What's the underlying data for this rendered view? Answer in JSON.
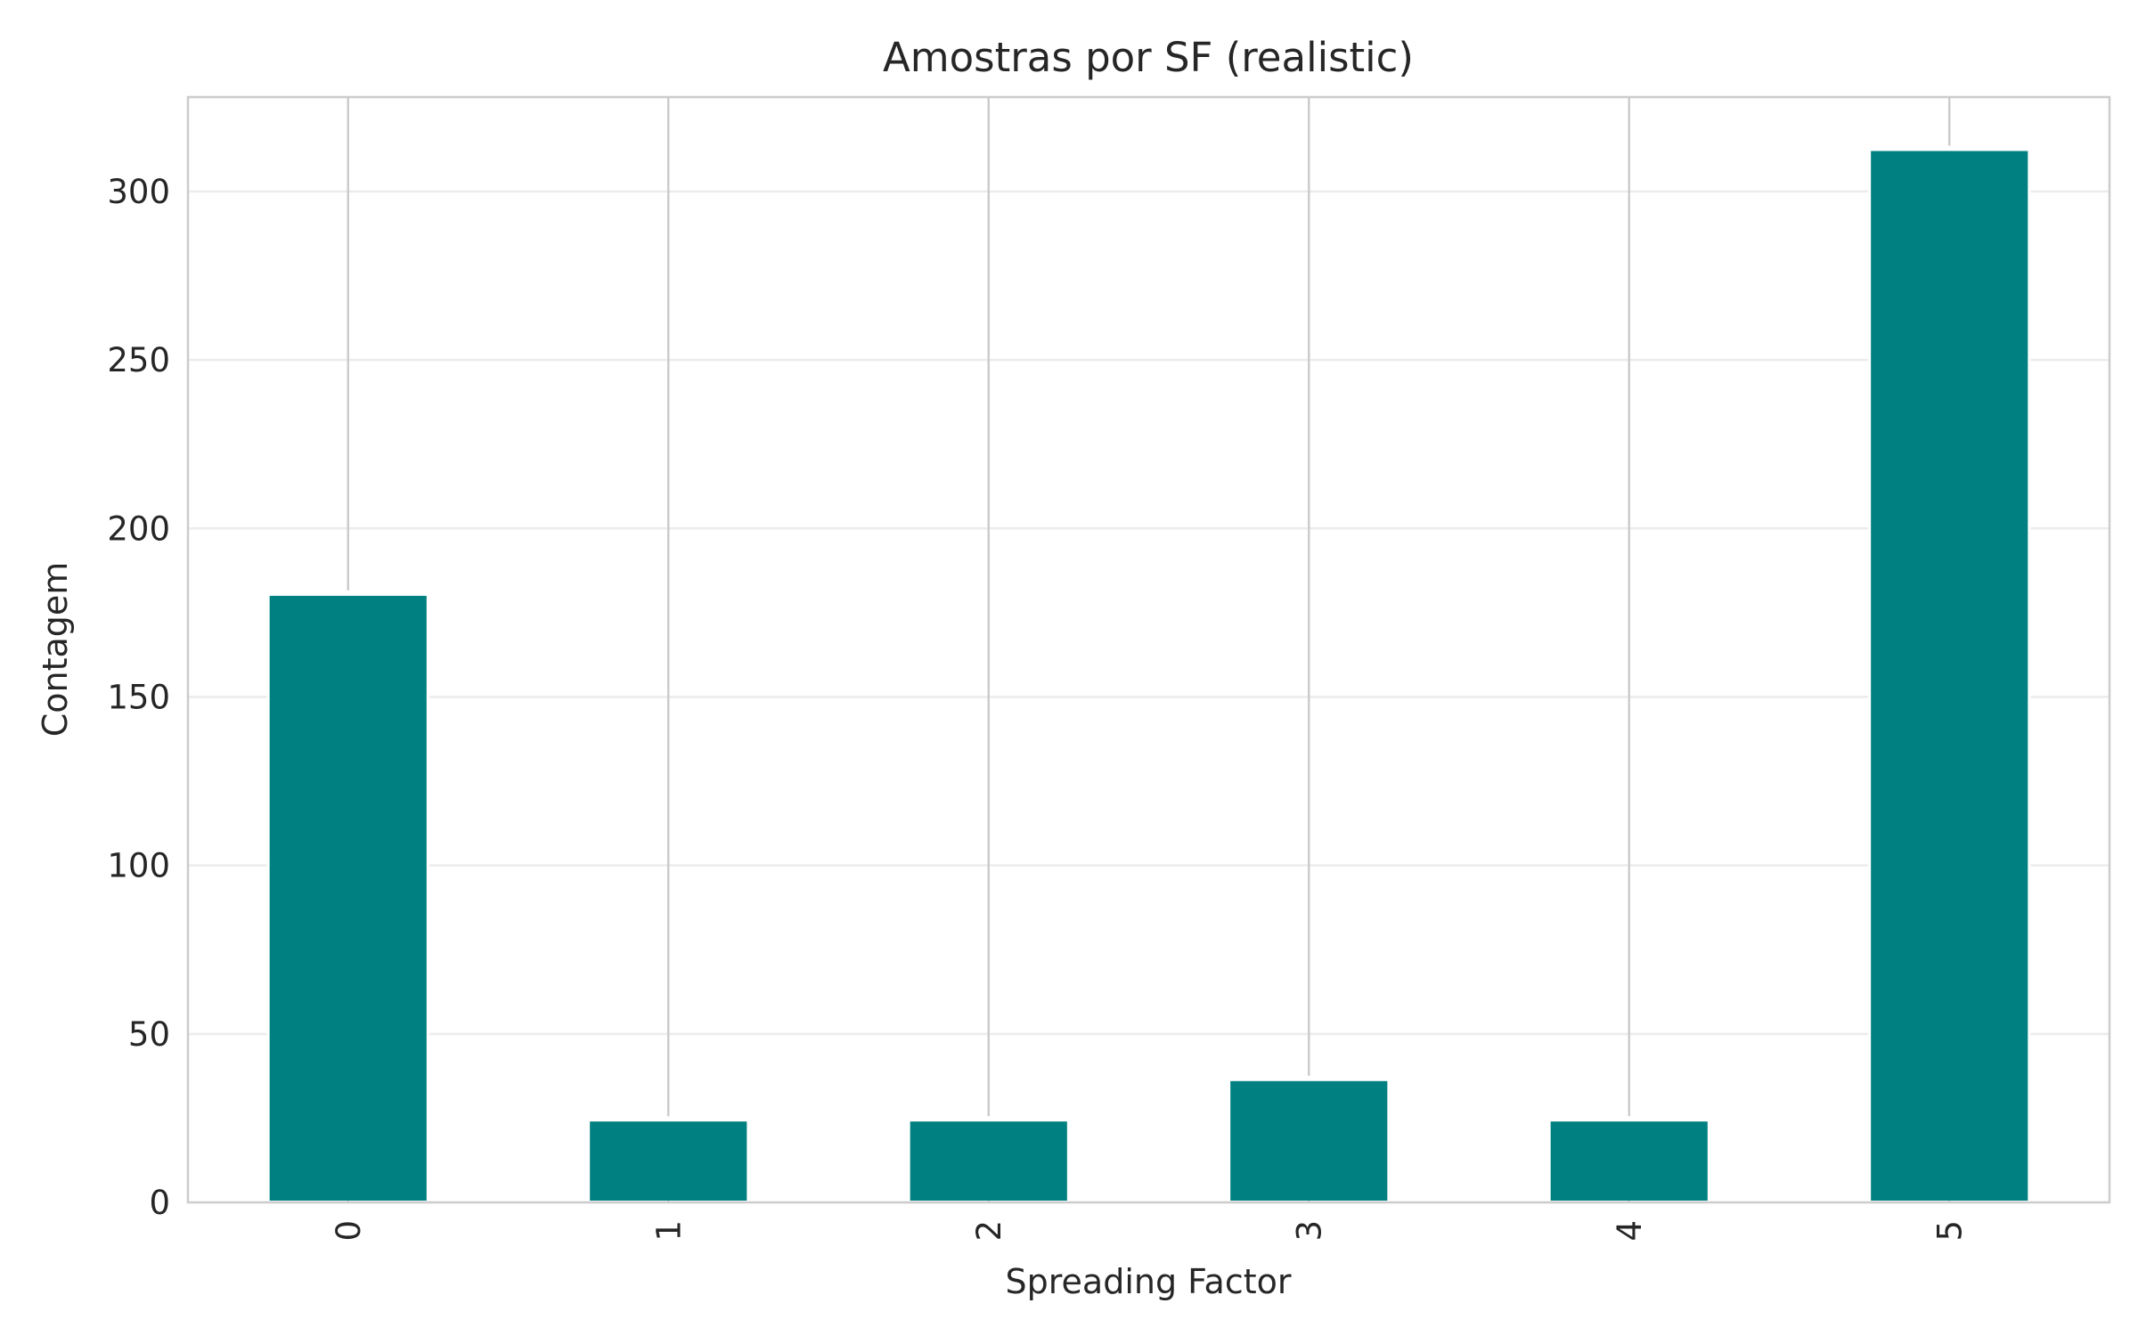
{
  "chart_data": {
    "type": "bar",
    "title": "Amostras por SF (realistic)",
    "xlabel": "Spreading Factor",
    "ylabel": "Contagem",
    "categories": [
      "0",
      "1",
      "2",
      "3",
      "4",
      "5"
    ],
    "values": [
      180,
      24,
      24,
      36,
      24,
      312
    ],
    "ylim": [
      0,
      328
    ],
    "yticks": [
      0,
      50,
      100,
      150,
      200,
      250,
      300
    ],
    "grid": true,
    "bar_color": "#008080"
  }
}
